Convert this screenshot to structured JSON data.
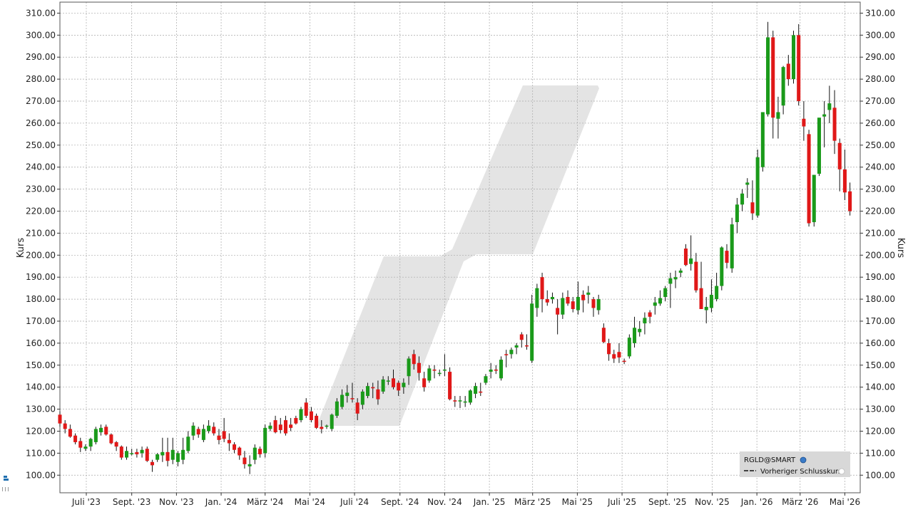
{
  "chart_data": {
    "type": "candlestick",
    "ylabel": "Kurs",
    "ylim": [
      92,
      315
    ],
    "yticks": [
      100,
      110,
      120,
      130,
      140,
      150,
      160,
      170,
      180,
      190,
      200,
      210,
      220,
      230,
      240,
      250,
      260,
      270,
      280,
      290,
      300,
      310
    ],
    "ytick_labels": [
      "100.00",
      "110.00",
      "120.00",
      "130.00",
      "140.00",
      "150.00",
      "160.00",
      "170.00",
      "180.00",
      "190.00",
      "200.00",
      "210.00",
      "220.00",
      "230.00",
      "240.00",
      "250.00",
      "260.00",
      "270.00",
      "280.00",
      "290.00",
      "300.00",
      "310.00"
    ],
    "x_start": "2023-05-26",
    "x_end": "2026-05-22",
    "xticks": [
      {
        "date": "2023-07-01",
        "label": "Juli '23"
      },
      {
        "date": "2023-09-01",
        "label": "Sept. '23"
      },
      {
        "date": "2023-11-01",
        "label": "Nov. '23"
      },
      {
        "date": "2024-01-01",
        "label": "Jan. '24"
      },
      {
        "date": "2024-03-01",
        "label": "März '24"
      },
      {
        "date": "2024-05-01",
        "label": "Mai '24"
      },
      {
        "date": "2024-07-01",
        "label": "Juli '24"
      },
      {
        "date": "2024-09-01",
        "label": "Sept. '24"
      },
      {
        "date": "2024-11-01",
        "label": "Nov. '24"
      },
      {
        "date": "2025-01-01",
        "label": "Jan. '25"
      },
      {
        "date": "2025-03-01",
        "label": "März '25"
      },
      {
        "date": "2025-05-01",
        "label": "Mai '25"
      },
      {
        "date": "2025-07-01",
        "label": "Juli '25"
      },
      {
        "date": "2025-09-01",
        "label": "Sept. '25"
      },
      {
        "date": "2025-11-01",
        "label": "Nov. '25"
      },
      {
        "date": "2026-01-01",
        "label": "Jan. '26"
      },
      {
        "date": "2026-03-01",
        "label": "März '26"
      },
      {
        "date": "2026-05-01",
        "label": "Mai '26"
      }
    ],
    "grid": true,
    "legend_position": "bottom-right",
    "legend": {
      "symbol": "RGLD@SMART",
      "prev_close_label": "Vorheriger Schlusskurs"
    },
    "colors": {
      "up": "#1a9a1a",
      "down": "#e01818",
      "wick": "#111111",
      "grid": "#a8a8a8",
      "watermark": "#e4e4e4"
    },
    "first_week": "2023-05-26",
    "weekly_ohlc": [
      [
        127.5,
        129,
        122,
        123.5
      ],
      [
        123.5,
        125,
        119,
        121
      ],
      [
        121,
        123,
        117,
        117.5
      ],
      [
        118,
        119,
        114,
        115
      ],
      [
        115.5,
        117,
        110.5,
        112.5
      ],
      [
        112,
        114,
        111,
        113
      ],
      [
        113,
        117,
        111,
        116.5
      ],
      [
        115,
        122,
        114,
        121
      ],
      [
        119.5,
        123,
        118,
        121.5
      ],
      [
        122,
        123,
        118,
        118.5
      ],
      [
        118.5,
        119,
        114,
        114.5
      ],
      [
        115,
        115.5,
        111,
        113
      ],
      [
        113,
        113.5,
        107,
        108
      ],
      [
        108,
        113,
        107,
        111
      ],
      [
        110,
        112,
        109,
        110
      ],
      [
        110.5,
        112,
        108,
        109.5
      ],
      [
        110,
        113,
        108,
        111.5
      ],
      [
        112,
        113,
        106,
        106.5
      ],
      [
        106,
        107,
        101.5,
        104.5
      ],
      [
        107,
        110,
        106,
        109.5
      ],
      [
        109,
        117,
        106,
        110.5
      ],
      [
        110.5,
        117,
        104,
        106.5
      ],
      [
        107,
        117,
        105,
        111.5
      ],
      [
        106,
        111,
        104,
        110
      ],
      [
        107,
        117,
        105,
        111.5
      ],
      [
        111,
        120,
        110,
        117.5
      ],
      [
        118,
        124,
        116,
        122.5
      ],
      [
        121,
        122,
        117,
        118.5
      ],
      [
        116,
        123,
        115,
        121
      ],
      [
        120,
        125,
        119,
        122.5
      ],
      [
        122,
        124,
        118,
        119
      ],
      [
        118,
        121,
        114,
        116
      ],
      [
        120,
        126,
        115,
        116.5
      ],
      [
        116,
        119,
        111,
        114.5
      ],
      [
        114,
        115,
        110,
        111.5
      ],
      [
        112.5,
        113,
        107,
        109
      ],
      [
        108,
        111,
        103,
        105
      ],
      [
        104,
        109,
        100.5,
        105
      ],
      [
        107,
        114,
        105,
        112.5
      ],
      [
        112,
        113,
        108,
        109.5
      ],
      [
        110,
        123,
        108,
        121.5
      ],
      [
        121,
        124,
        120,
        122.5
      ],
      [
        125,
        127,
        119,
        119.5
      ],
      [
        123,
        126,
        119,
        120.5
      ],
      [
        125,
        127,
        118,
        119
      ],
      [
        123,
        126,
        120,
        121.5
      ],
      [
        126,
        127,
        123,
        123.5
      ],
      [
        125,
        131,
        124,
        130
      ],
      [
        133,
        135,
        126,
        127
      ],
      [
        129,
        131,
        124,
        125
      ],
      [
        127,
        128,
        121,
        121.5
      ],
      [
        122,
        125,
        119,
        121
      ],
      [
        122,
        123,
        121,
        122.5
      ],
      [
        121,
        128,
        120,
        127.5
      ],
      [
        127,
        135,
        126,
        133.5
      ],
      [
        131,
        139,
        130,
        136.5
      ],
      [
        136,
        141,
        133,
        137.5
      ],
      [
        135,
        142,
        133,
        134.5
      ],
      [
        133,
        135,
        125,
        128
      ],
      [
        132,
        139,
        130,
        138
      ],
      [
        136,
        142,
        135,
        140.5
      ],
      [
        140,
        142,
        135,
        139.5
      ],
      [
        139,
        143,
        132,
        134.5
      ],
      [
        138,
        145,
        137,
        143.5
      ],
      [
        143,
        145,
        141,
        143
      ],
      [
        144,
        148,
        139,
        140
      ],
      [
        142,
        143,
        136,
        138.5
      ],
      [
        140,
        144,
        137,
        142
      ],
      [
        145,
        154,
        141,
        153
      ],
      [
        155,
        157,
        148,
        150.5
      ],
      [
        151,
        154,
        143,
        146.5
      ],
      [
        144,
        147,
        138,
        140
      ],
      [
        143,
        150,
        142,
        148.5
      ],
      [
        148,
        150,
        144,
        147.5
      ],
      [
        146,
        148,
        145,
        146.5
      ],
      [
        148,
        155,
        145,
        148
      ],
      [
        147,
        149,
        134,
        134.5
      ],
      [
        134,
        136,
        131,
        133.5
      ],
      [
        134,
        136,
        130.5,
        134
      ],
      [
        133,
        136,
        131,
        133.5
      ],
      [
        133,
        139,
        132,
        138.5
      ],
      [
        137,
        142,
        135,
        140.5
      ],
      [
        138,
        142,
        136,
        137.5
      ],
      [
        142,
        146,
        141,
        145
      ],
      [
        147,
        151,
        144,
        148
      ],
      [
        148,
        150,
        146,
        147.5
      ],
      [
        144,
        154,
        143,
        152.5
      ],
      [
        155,
        157,
        149,
        154.5
      ],
      [
        155,
        158,
        153,
        157
      ],
      [
        158,
        160,
        155,
        159
      ],
      [
        164,
        165,
        158,
        161.5
      ],
      [
        159,
        164,
        157,
        158.5
      ],
      [
        152,
        182,
        151,
        178
      ],
      [
        176,
        187,
        172,
        185
      ],
      [
        190,
        192,
        174,
        180
      ],
      [
        180,
        184,
        177,
        178.5
      ],
      [
        180,
        183,
        178,
        181
      ],
      [
        176,
        180,
        164,
        173
      ],
      [
        173,
        183,
        171,
        180.5
      ],
      [
        181,
        184,
        177,
        178
      ],
      [
        179,
        181,
        174,
        175.5
      ],
      [
        175,
        188,
        173,
        181
      ],
      [
        182,
        184,
        174,
        179.5
      ],
      [
        182,
        186,
        178,
        183
      ],
      [
        180,
        181,
        172,
        176
      ],
      [
        175,
        182,
        173,
        180
      ]
    ],
    "weekly_ohlc_2": [
      [
        167,
        169,
        160,
        160.5
      ],
      [
        160,
        162,
        152,
        155
      ],
      [
        155,
        157,
        151,
        153
      ],
      [
        156,
        160,
        151,
        153.5
      ],
      [
        152,
        153,
        150.5,
        151.5
      ],
      [
        154,
        164,
        153,
        162.5
      ],
      [
        160,
        172,
        158,
        167
      ],
      [
        165,
        170,
        163,
        166.5
      ],
      [
        169,
        174,
        164,
        171.5
      ],
      [
        174,
        175,
        169,
        172
      ],
      [
        177,
        181,
        173,
        178.5
      ],
      [
        178,
        184,
        177,
        180.5
      ],
      [
        181,
        186,
        179,
        185
      ],
      [
        187,
        192,
        176,
        189.5
      ],
      [
        189,
        193,
        185,
        190
      ],
      [
        192,
        194,
        190,
        193
      ],
      [
        203,
        205,
        195,
        195.5
      ],
      [
        196,
        209,
        193,
        198.5
      ],
      [
        197,
        201,
        183,
        184
      ],
      [
        185,
        197,
        178,
        175.5
      ],
      [
        175,
        181,
        169,
        176.5
      ],
      [
        176,
        189,
        174,
        182
      ],
      [
        180,
        192,
        179,
        186
      ],
      [
        186,
        204,
        184,
        203.5
      ],
      [
        202,
        205,
        194,
        196.5
      ],
      [
        194,
        217,
        192,
        214
      ],
      [
        215,
        226,
        210,
        223
      ],
      [
        223,
        230,
        220,
        228
      ],
      [
        232,
        235,
        226,
        233
      ],
      [
        224,
        234,
        216,
        219
      ],
      [
        218,
        248,
        217,
        244.5
      ],
      [
        240,
        262,
        238,
        265
      ],
      [
        264,
        306,
        263,
        299
      ],
      [
        299,
        302,
        253,
        262.5
      ],
      [
        262,
        272,
        253,
        265
      ],
      [
        268,
        286,
        264,
        285.5
      ],
      [
        287,
        291,
        277,
        280
      ],
      [
        280,
        302,
        278,
        300
      ],
      [
        300,
        305,
        268,
        270
      ],
      [
        262,
        270,
        252,
        258.5
      ],
      [
        255,
        257,
        213,
        214.5
      ],
      [
        215,
        232,
        213,
        236.5
      ],
      [
        237,
        250,
        236,
        262.5
      ],
      [
        263,
        270,
        249,
        264
      ],
      [
        266,
        277,
        260,
        269
      ],
      [
        267,
        275,
        246,
        252
      ],
      [
        251,
        253,
        229,
        239
      ],
      [
        239,
        248,
        225,
        228.5
      ],
      [
        229,
        233,
        218,
        220
      ]
    ]
  }
}
